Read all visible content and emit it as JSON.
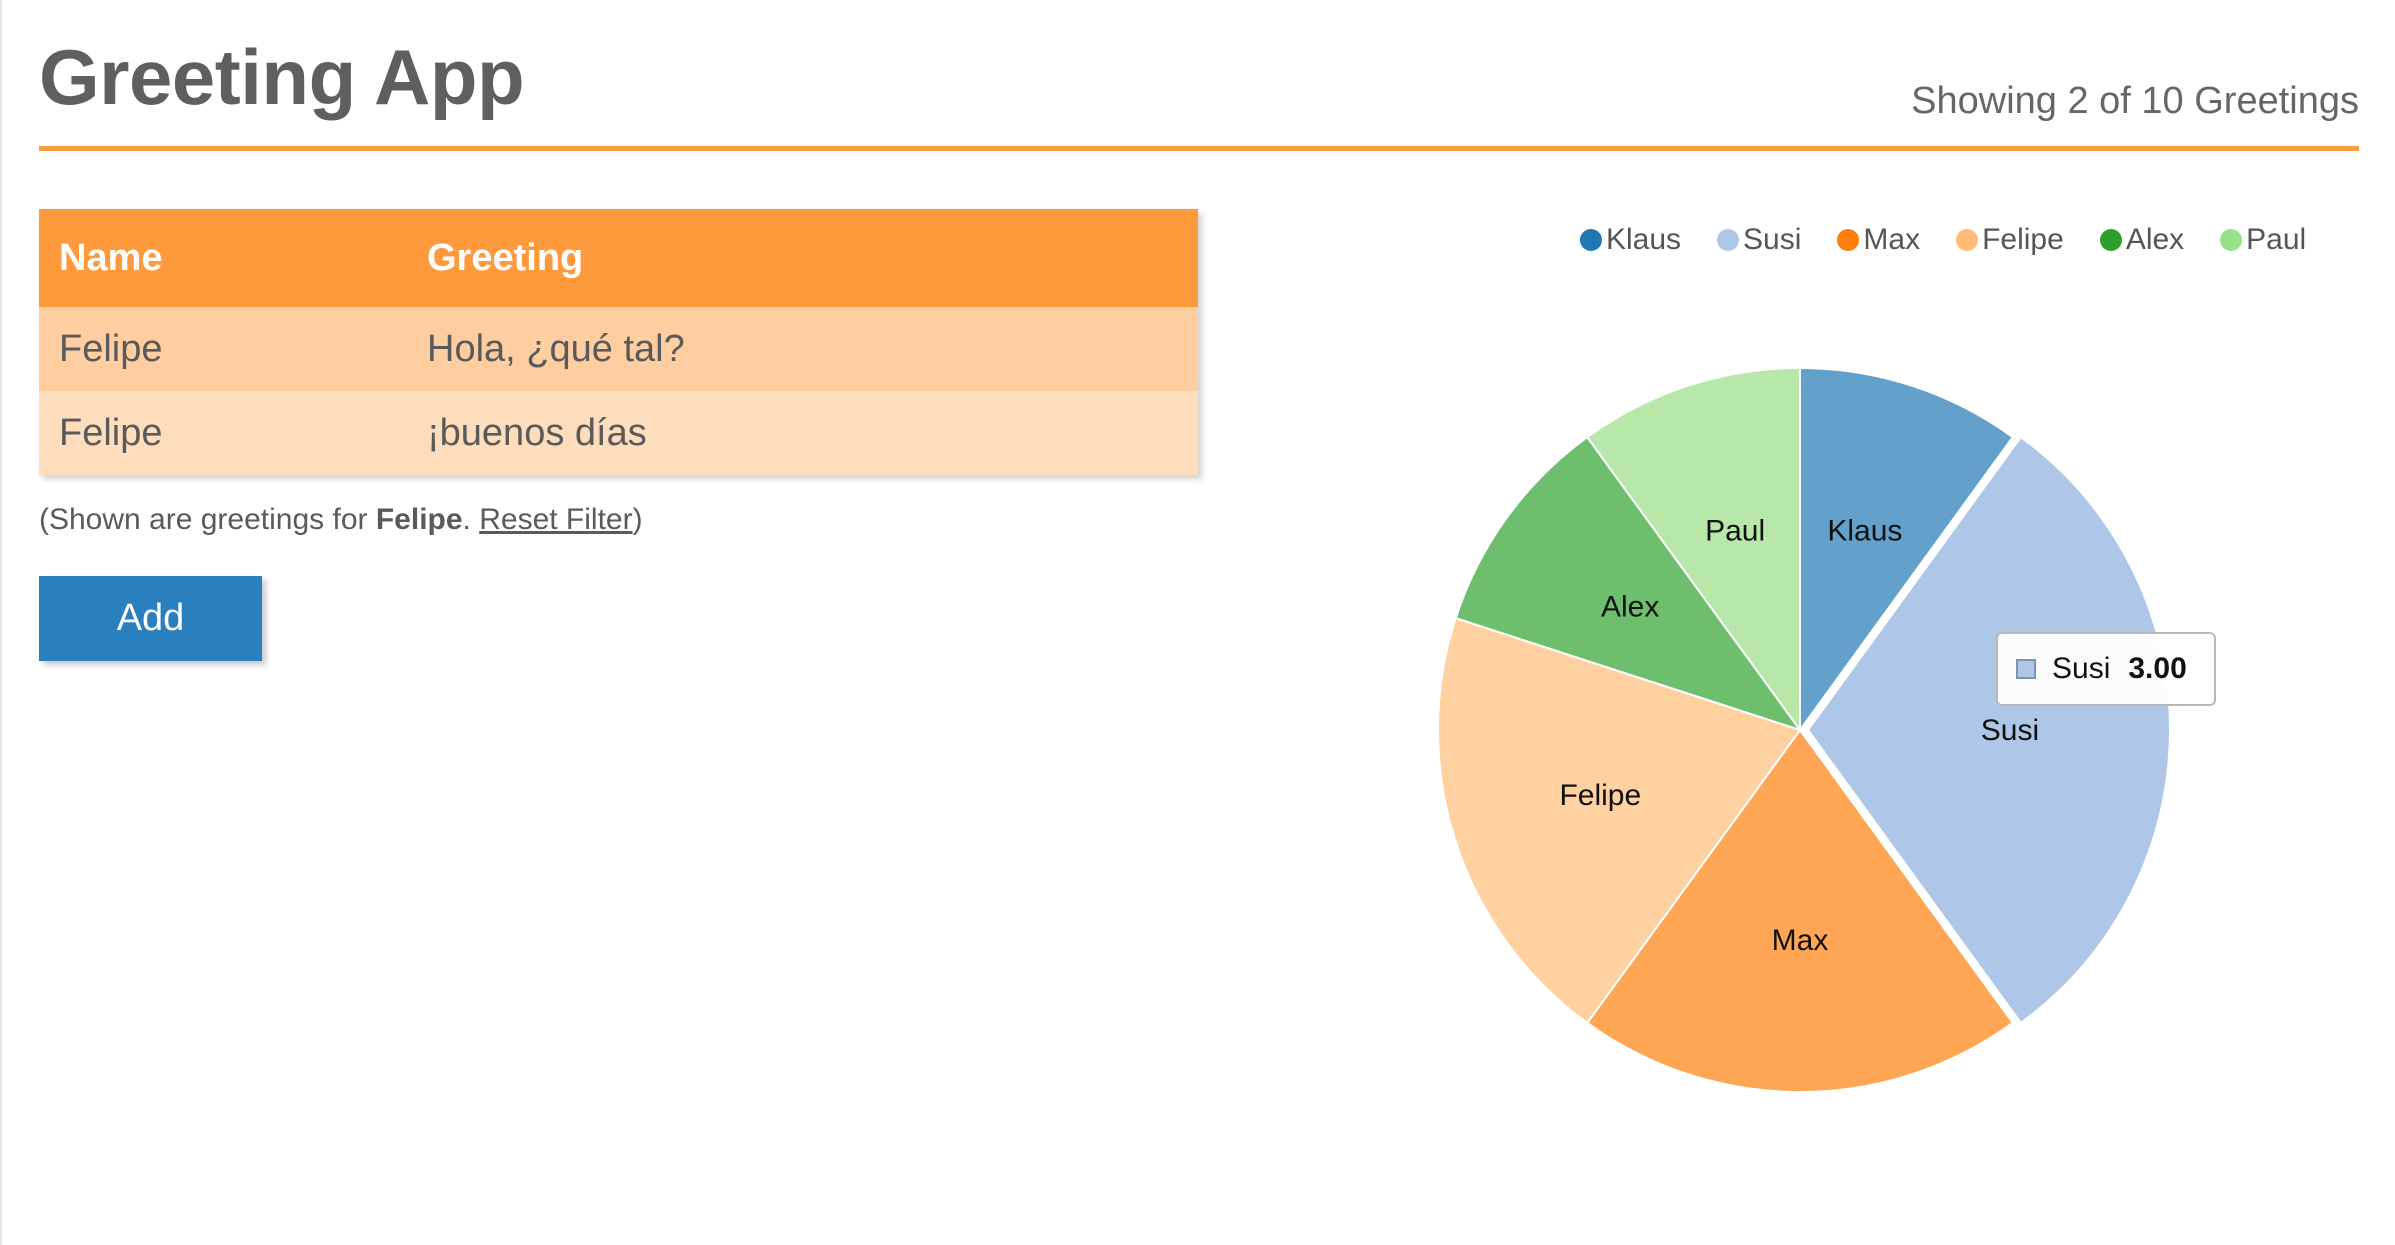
{
  "header": {
    "title": "Greeting App",
    "counter": "Showing 2 of 10 Greetings"
  },
  "colors": {
    "accent": "#f89b41",
    "table_header_bg": "#fe993c",
    "row_odd_bg": "#fecda0",
    "row_even_bg": "#feddbd",
    "button_bg": "#2a7fbf"
  },
  "table": {
    "columns": [
      "Name",
      "Greeting"
    ],
    "rows": [
      {
        "name": "Felipe",
        "greeting": "Hola, ¿qué tal?"
      },
      {
        "name": "Felipe",
        "greeting": "¡buenos días"
      }
    ]
  },
  "filter": {
    "prefix": "(Shown are greetings for ",
    "name": "Felipe",
    "separator": ". ",
    "reset_label": "Reset Filter",
    "suffix": ")"
  },
  "add_button": {
    "label": "Add"
  },
  "chart_data": {
    "type": "pie",
    "slices": [
      {
        "name": "Klaus",
        "value": 1,
        "color": "#63a1cc",
        "legend_color": "#1f77b4"
      },
      {
        "name": "Susi",
        "value": 3,
        "color": "#aec6e8",
        "legend_color": "#aec6e8"
      },
      {
        "name": "Max",
        "value": 2,
        "color": "#ffa654",
        "legend_color": "#ff7f0e"
      },
      {
        "name": "Felipe",
        "value": 2,
        "color": "#ffd0a0",
        "legend_color": "#ffbb78"
      },
      {
        "name": "Alex",
        "value": 1,
        "color": "#6dbe6d",
        "legend_color": "#2ca02c"
      },
      {
        "name": "Paul",
        "value": 1,
        "color": "#b8e8a9",
        "legend_color": "#98df8a"
      }
    ],
    "legend_placement": "top-right"
  },
  "tooltip": {
    "name": "Susi",
    "value": "3.00"
  }
}
